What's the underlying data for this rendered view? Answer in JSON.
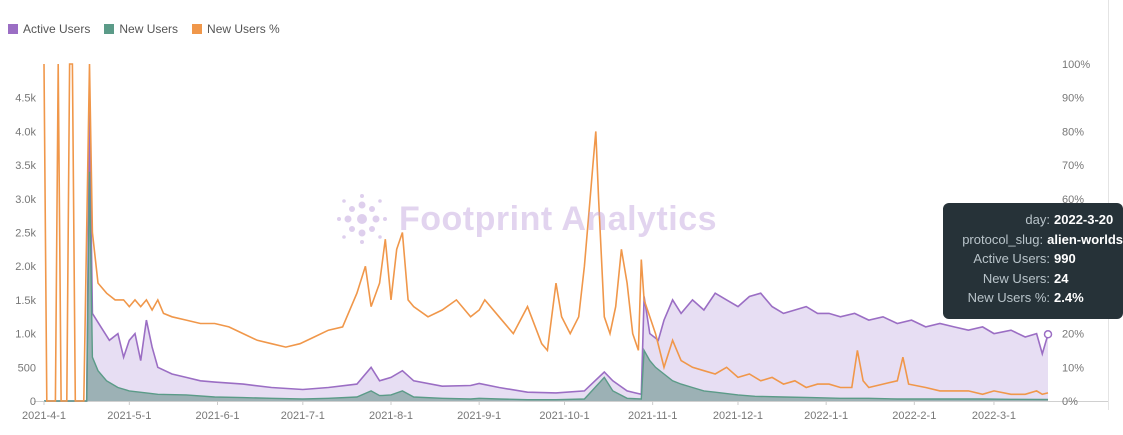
{
  "legend": [
    {
      "label": "Active Users",
      "color": "#9b6ec4"
    },
    {
      "label": "New Users",
      "color": "#5b9b88"
    },
    {
      "label": "New Users %",
      "color": "#f0974a"
    }
  ],
  "watermark": "Footprint Analytics",
  "tooltip": {
    "rows": [
      {
        "key": "day:",
        "value": "2022-3-20"
      },
      {
        "key": "protocol_slug:",
        "value": "alien-worlds"
      },
      {
        "key": "Active Users:",
        "value": "990"
      },
      {
        "key": "New Users:",
        "value": "24"
      },
      {
        "key": "New Users %:",
        "value": "2.4%"
      }
    ]
  },
  "chart_data": {
    "type": "area",
    "title": "",
    "xlabel": "",
    "ylabel": "",
    "ylim": [
      0,
      5000
    ],
    "y2lim": [
      0,
      100
    ],
    "y_ticks": [
      "0",
      "500",
      "1.0k",
      "1.5k",
      "2.0k",
      "2.5k",
      "3.0k",
      "3.5k",
      "4.0k",
      "4.5k"
    ],
    "y2_ticks": [
      "0%",
      "10%",
      "20%",
      "30%",
      "40%",
      "50%",
      "60%",
      "70%",
      "80%",
      "90%",
      "100%"
    ],
    "x_ticks": [
      "2021-4-1",
      "2021-5-1",
      "2021-6-1",
      "2021-7-1",
      "2021-8-1",
      "2021-9-1",
      "2021-10-1",
      "2021-11-1",
      "2021-12-1",
      "2022-1-1",
      "2022-2-1",
      "2022-3-1"
    ],
    "x_tick_days": [
      0,
      30,
      61,
      91,
      122,
      153,
      183,
      214,
      244,
      275,
      306,
      334
    ],
    "day_range": [
      0,
      353
    ],
    "series": [
      {
        "name": "Active Users",
        "color": "#9b6ec4",
        "axis": "left",
        "points": [
          [
            0,
            0
          ],
          [
            15,
            0
          ],
          [
            16,
            4300
          ],
          [
            17,
            1300
          ],
          [
            20,
            1100
          ],
          [
            23,
            900
          ],
          [
            26,
            1000
          ],
          [
            28,
            650
          ],
          [
            30,
            900
          ],
          [
            32,
            1000
          ],
          [
            34,
            600
          ],
          [
            36,
            1200
          ],
          [
            38,
            800
          ],
          [
            40,
            500
          ],
          [
            45,
            400
          ],
          [
            50,
            350
          ],
          [
            55,
            300
          ],
          [
            60,
            280
          ],
          [
            70,
            250
          ],
          [
            80,
            200
          ],
          [
            91,
            170
          ],
          [
            100,
            200
          ],
          [
            110,
            250
          ],
          [
            115,
            500
          ],
          [
            118,
            300
          ],
          [
            122,
            350
          ],
          [
            126,
            450
          ],
          [
            130,
            300
          ],
          [
            140,
            220
          ],
          [
            150,
            230
          ],
          [
            153,
            260
          ],
          [
            160,
            200
          ],
          [
            170,
            130
          ],
          [
            180,
            120
          ],
          [
            190,
            150
          ],
          [
            197,
            430
          ],
          [
            200,
            300
          ],
          [
            205,
            150
          ],
          [
            210,
            100
          ],
          [
            211,
            1550
          ],
          [
            213,
            1000
          ],
          [
            216,
            900
          ],
          [
            218,
            1200
          ],
          [
            221,
            1500
          ],
          [
            224,
            1300
          ],
          [
            228,
            1500
          ],
          [
            232,
            1350
          ],
          [
            236,
            1600
          ],
          [
            240,
            1500
          ],
          [
            244,
            1400
          ],
          [
            248,
            1550
          ],
          [
            252,
            1600
          ],
          [
            256,
            1400
          ],
          [
            260,
            1300
          ],
          [
            264,
            1350
          ],
          [
            268,
            1400
          ],
          [
            272,
            1300
          ],
          [
            276,
            1300
          ],
          [
            280,
            1250
          ],
          [
            285,
            1300
          ],
          [
            290,
            1200
          ],
          [
            295,
            1250
          ],
          [
            300,
            1150
          ],
          [
            305,
            1200
          ],
          [
            310,
            1100
          ],
          [
            315,
            1150
          ],
          [
            320,
            1100
          ],
          [
            325,
            1050
          ],
          [
            330,
            1100
          ],
          [
            334,
            1000
          ],
          [
            340,
            1050
          ],
          [
            345,
            950
          ],
          [
            349,
            1000
          ],
          [
            351,
            700
          ],
          [
            353,
            990
          ]
        ]
      },
      {
        "name": "New Users",
        "color": "#5b9b88",
        "axis": "left",
        "points": [
          [
            0,
            0
          ],
          [
            15,
            0
          ],
          [
            16,
            3400
          ],
          [
            17,
            650
          ],
          [
            19,
            450
          ],
          [
            22,
            300
          ],
          [
            26,
            200
          ],
          [
            30,
            150
          ],
          [
            36,
            120
          ],
          [
            40,
            100
          ],
          [
            50,
            90
          ],
          [
            60,
            60
          ],
          [
            70,
            50
          ],
          [
            80,
            40
          ],
          [
            91,
            30
          ],
          [
            100,
            40
          ],
          [
            110,
            60
          ],
          [
            115,
            150
          ],
          [
            118,
            80
          ],
          [
            122,
            90
          ],
          [
            126,
            150
          ],
          [
            130,
            60
          ],
          [
            140,
            40
          ],
          [
            150,
            30
          ],
          [
            153,
            40
          ],
          [
            160,
            30
          ],
          [
            170,
            20
          ],
          [
            180,
            20
          ],
          [
            190,
            30
          ],
          [
            197,
            350
          ],
          [
            200,
            150
          ],
          [
            205,
            40
          ],
          [
            210,
            30
          ],
          [
            211,
            750
          ],
          [
            213,
            600
          ],
          [
            215,
            500
          ],
          [
            218,
            400
          ],
          [
            221,
            300
          ],
          [
            224,
            250
          ],
          [
            228,
            200
          ],
          [
            232,
            150
          ],
          [
            236,
            130
          ],
          [
            240,
            110
          ],
          [
            244,
            90
          ],
          [
            250,
            70
          ],
          [
            260,
            60
          ],
          [
            270,
            50
          ],
          [
            280,
            40
          ],
          [
            290,
            40
          ],
          [
            300,
            30
          ],
          [
            310,
            30
          ],
          [
            320,
            30
          ],
          [
            330,
            30
          ],
          [
            340,
            25
          ],
          [
            353,
            24
          ]
        ]
      },
      {
        "name": "New Users %",
        "color": "#f0974a",
        "axis": "right",
        "points": [
          [
            0,
            100
          ],
          [
            1,
            0
          ],
          [
            4,
            0
          ],
          [
            5,
            100
          ],
          [
            6,
            0
          ],
          [
            8,
            0
          ],
          [
            9,
            100
          ],
          [
            10,
            100
          ],
          [
            11,
            0
          ],
          [
            14,
            0
          ],
          [
            16,
            100
          ],
          [
            17,
            50
          ],
          [
            19,
            35
          ],
          [
            22,
            32
          ],
          [
            25,
            30
          ],
          [
            28,
            30
          ],
          [
            30,
            28
          ],
          [
            32,
            30
          ],
          [
            34,
            28
          ],
          [
            36,
            30
          ],
          [
            38,
            27
          ],
          [
            40,
            30
          ],
          [
            42,
            26
          ],
          [
            45,
            25
          ],
          [
            50,
            24
          ],
          [
            55,
            23
          ],
          [
            60,
            23
          ],
          [
            65,
            22
          ],
          [
            70,
            20
          ],
          [
            75,
            18
          ],
          [
            80,
            17
          ],
          [
            85,
            16
          ],
          [
            90,
            17
          ],
          [
            95,
            19
          ],
          [
            100,
            21
          ],
          [
            105,
            22
          ],
          [
            110,
            32
          ],
          [
            113,
            40
          ],
          [
            115,
            28
          ],
          [
            118,
            35
          ],
          [
            120,
            48
          ],
          [
            122,
            30
          ],
          [
            124,
            45
          ],
          [
            126,
            50
          ],
          [
            128,
            30
          ],
          [
            130,
            28
          ],
          [
            135,
            25
          ],
          [
            140,
            27
          ],
          [
            145,
            30
          ],
          [
            150,
            25
          ],
          [
            153,
            27
          ],
          [
            155,
            30
          ],
          [
            160,
            25
          ],
          [
            165,
            20
          ],
          [
            170,
            28
          ],
          [
            175,
            17
          ],
          [
            177,
            15
          ],
          [
            180,
            35
          ],
          [
            182,
            25
          ],
          [
            185,
            20
          ],
          [
            188,
            25
          ],
          [
            190,
            40
          ],
          [
            192,
            60
          ],
          [
            193,
            70
          ],
          [
            194,
            80
          ],
          [
            195,
            60
          ],
          [
            197,
            25
          ],
          [
            199,
            20
          ],
          [
            201,
            28
          ],
          [
            203,
            45
          ],
          [
            205,
            35
          ],
          [
            207,
            20
          ],
          [
            209,
            15
          ],
          [
            210,
            42
          ],
          [
            211,
            30
          ],
          [
            213,
            25
          ],
          [
            215,
            20
          ],
          [
            218,
            10
          ],
          [
            221,
            18
          ],
          [
            224,
            12
          ],
          [
            228,
            10
          ],
          [
            232,
            9
          ],
          [
            236,
            8
          ],
          [
            240,
            10
          ],
          [
            244,
            7
          ],
          [
            248,
            8
          ],
          [
            252,
            6
          ],
          [
            256,
            7
          ],
          [
            260,
            5
          ],
          [
            264,
            6
          ],
          [
            268,
            4
          ],
          [
            272,
            5
          ],
          [
            276,
            5
          ],
          [
            280,
            4
          ],
          [
            284,
            4
          ],
          [
            286,
            15
          ],
          [
            288,
            6
          ],
          [
            290,
            4
          ],
          [
            295,
            5
          ],
          [
            300,
            6
          ],
          [
            302,
            13
          ],
          [
            304,
            5
          ],
          [
            310,
            4
          ],
          [
            315,
            3
          ],
          [
            320,
            3
          ],
          [
            325,
            3
          ],
          [
            330,
            2
          ],
          [
            334,
            3
          ],
          [
            340,
            2
          ],
          [
            345,
            2
          ],
          [
            349,
            3
          ],
          [
            351,
            2
          ],
          [
            353,
            2.4
          ]
        ]
      }
    ]
  }
}
